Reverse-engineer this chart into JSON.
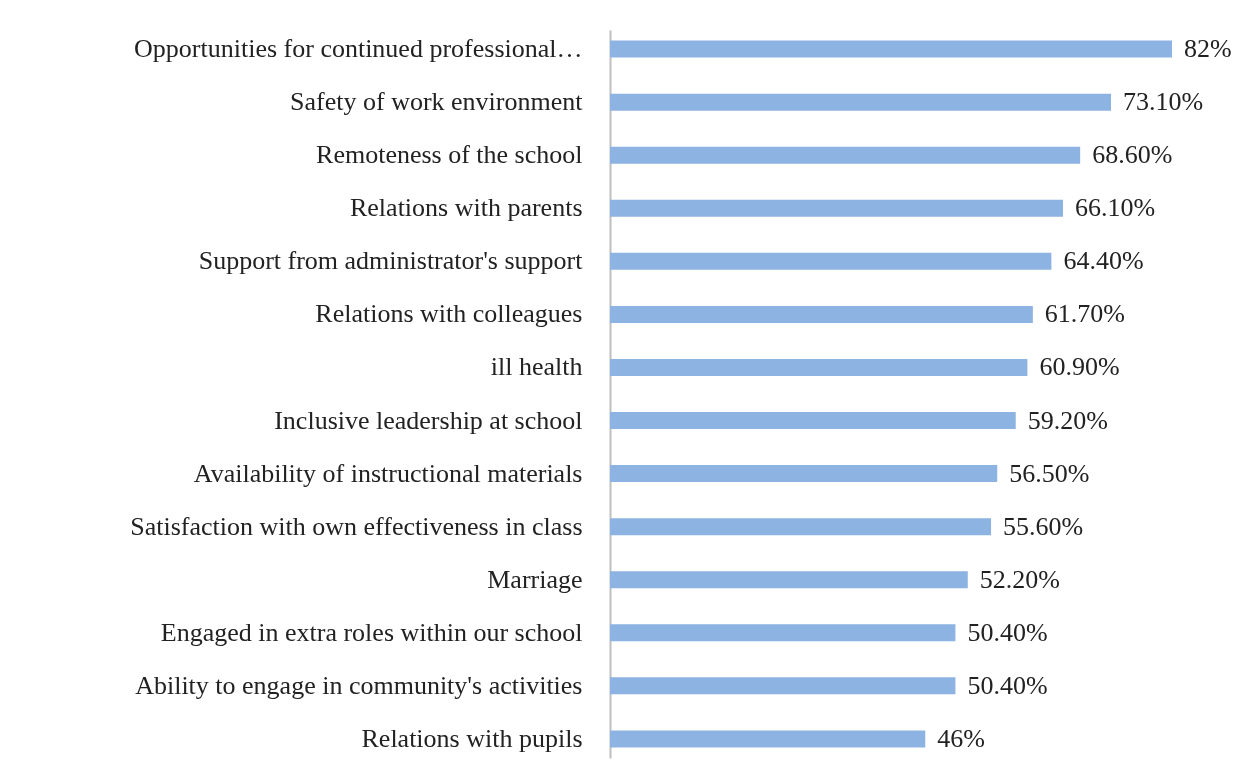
{
  "chart_data": {
    "type": "bar",
    "orientation": "horizontal",
    "color": "#8db3e2",
    "categories": [
      "Opportunities for continued professional…",
      "Safety of work environment",
      "Remoteness of the school",
      "Relations with parents",
      "Support from administrator's support",
      "Relations with colleagues",
      "ill health",
      "Inclusive leadership at school",
      "Availability of instructional materials",
      "Satisfaction with own effectiveness in class",
      "Marriage",
      "Engaged in extra roles within our school",
      "Ability to engage in community's activities",
      "Relations with pupils"
    ],
    "values": [
      82,
      73.1,
      68.6,
      66.1,
      64.4,
      61.7,
      60.9,
      59.2,
      56.5,
      55.6,
      52.2,
      50.4,
      50.4,
      46
    ],
    "value_labels": [
      "82%",
      "73.10%",
      "68.60%",
      "66.10%",
      "64.40%",
      "61.70%",
      "60.90%",
      "59.20%",
      "56.50%",
      "55.60%",
      "52.20%",
      "50.40%",
      "50.40%",
      "46%"
    ],
    "data_labels": false
  }
}
